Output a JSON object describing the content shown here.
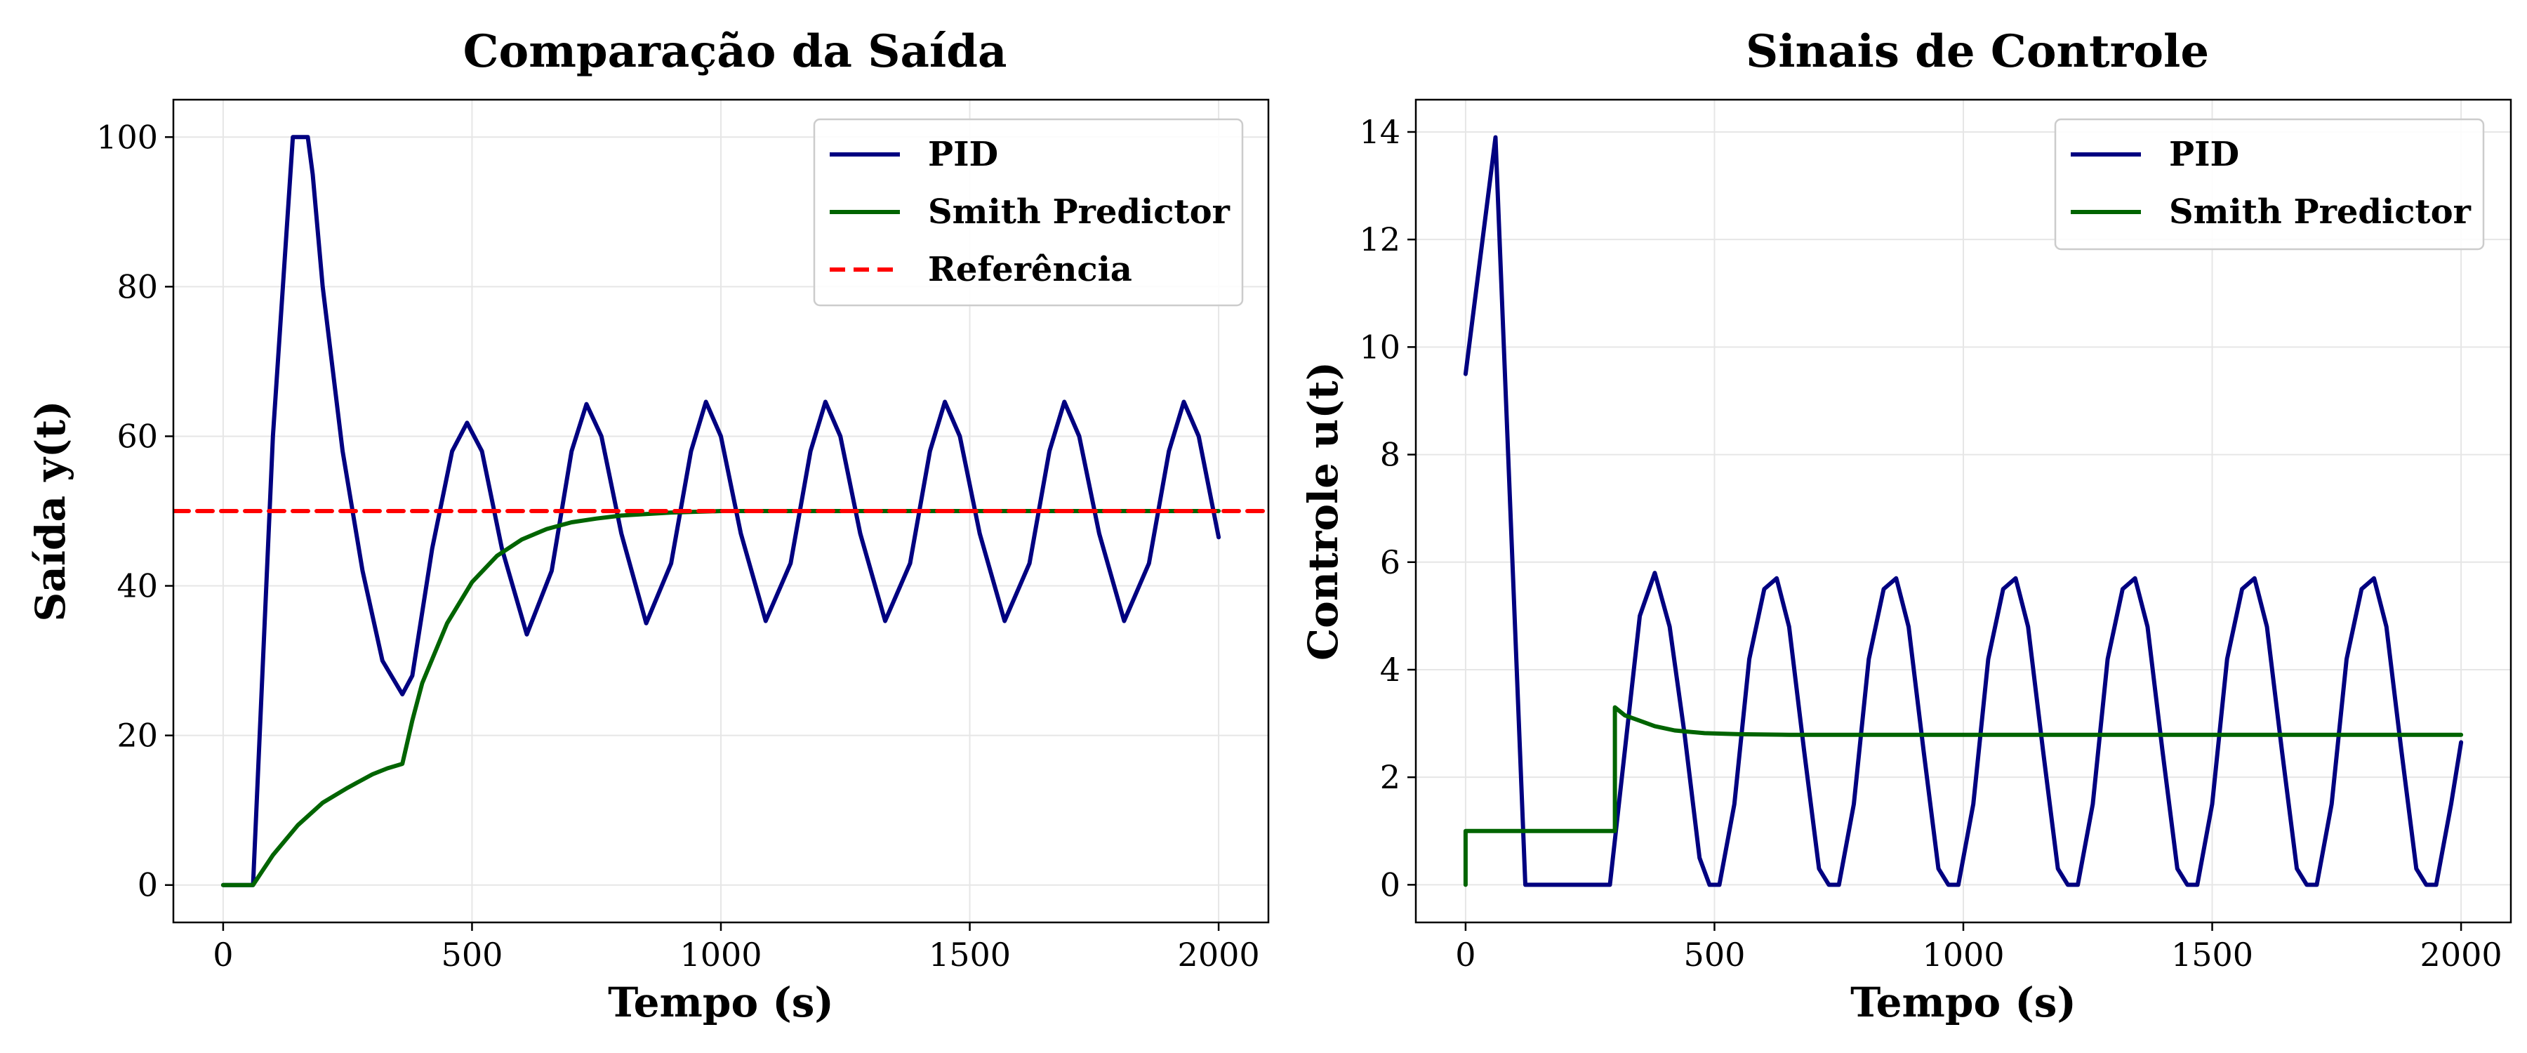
{
  "chart_data": [
    {
      "type": "line",
      "title": "Comparação da Saída",
      "xlabel": "Tempo (s)",
      "ylabel": "Saída y(t)",
      "xlim": [
        -100,
        2100
      ],
      "ylim": [
        -5,
        105
      ],
      "xticks": [
        0,
        500,
        1000,
        1500,
        2000
      ],
      "yticks": [
        0,
        20,
        40,
        60,
        80,
        100
      ],
      "grid": true,
      "legend_position": "top-right",
      "series": [
        {
          "name": "PID",
          "color": "#000080",
          "dash": "solid",
          "x": [
            0,
            60,
            100,
            140,
            170,
            180,
            200,
            240,
            280,
            320,
            360,
            380,
            420,
            460,
            490,
            520,
            560,
            610,
            660,
            700,
            730,
            760,
            800,
            850,
            900,
            940,
            970,
            1000,
            1040,
            1090,
            1140,
            1180,
            1210,
            1240,
            1280,
            1330,
            1380,
            1420,
            1450,
            1480,
            1520,
            1570,
            1620,
            1660,
            1690,
            1720,
            1760,
            1810,
            1860,
            1900,
            1930,
            1960,
            2000
          ],
          "values": [
            0,
            0,
            60,
            100,
            100,
            95,
            80,
            58,
            42,
            30,
            25.5,
            28,
            45,
            58,
            61.8,
            58,
            45,
            33.5,
            42,
            58,
            64.3,
            60,
            47,
            35,
            43,
            58,
            64.6,
            60,
            47,
            35.3,
            43,
            58,
            64.6,
            60,
            47,
            35.3,
            43,
            58,
            64.6,
            60,
            47,
            35.3,
            43,
            58,
            64.6,
            60,
            47,
            35.3,
            43,
            58,
            64.6,
            60,
            46.5
          ]
        },
        {
          "name": "Smith Predictor",
          "color": "#006400",
          "dash": "solid",
          "x": [
            0,
            60,
            80,
            100,
            150,
            200,
            250,
            300,
            330,
            360,
            380,
            400,
            450,
            500,
            550,
            600,
            650,
            700,
            750,
            800,
            900,
            1000,
            1200,
            1500,
            2000
          ],
          "values": [
            0,
            0,
            2,
            4,
            8,
            11,
            13,
            14.8,
            15.6,
            16.2,
            22,
            27,
            35,
            40.5,
            44,
            46.2,
            47.6,
            48.5,
            49,
            49.4,
            49.8,
            50,
            50,
            50,
            50
          ]
        },
        {
          "name": "Referência",
          "color": "#ff0000",
          "dash": "dashed",
          "x": [
            -100,
            2100
          ],
          "values": [
            50,
            50
          ]
        }
      ]
    },
    {
      "type": "line",
      "title": "Sinais de Controle",
      "xlabel": "Tempo (s)",
      "ylabel": "Controle u(t)",
      "xlim": [
        -100,
        2100
      ],
      "ylim": [
        -0.7,
        14.6
      ],
      "xticks": [
        0,
        500,
        1000,
        1500,
        2000
      ],
      "yticks": [
        0,
        2,
        4,
        6,
        8,
        10,
        12,
        14
      ],
      "grid": true,
      "legend_position": "top-right",
      "series": [
        {
          "name": "PID",
          "color": "#000080",
          "dash": "solid",
          "x": [
            0,
            60,
            120,
            290,
            320,
            350,
            380,
            410,
            440,
            470,
            490,
            510,
            540,
            570,
            600,
            625,
            650,
            680,
            710,
            730,
            750,
            780,
            810,
            840,
            865,
            890,
            920,
            950,
            970,
            990,
            1020,
            1050,
            1080,
            1105,
            1130,
            1160,
            1190,
            1210,
            1230,
            1260,
            1290,
            1320,
            1345,
            1370,
            1400,
            1430,
            1450,
            1470,
            1500,
            1530,
            1560,
            1585,
            1610,
            1640,
            1670,
            1690,
            1710,
            1740,
            1770,
            1800,
            1825,
            1850,
            1880,
            1910,
            1930,
            1950,
            1980,
            2000
          ],
          "values": [
            9.5,
            13.9,
            0,
            0,
            2.5,
            5,
            5.8,
            4.8,
            2.8,
            0.5,
            0,
            0,
            1.5,
            4.2,
            5.5,
            5.7,
            4.8,
            2.5,
            0.3,
            0,
            0,
            1.5,
            4.2,
            5.5,
            5.7,
            4.8,
            2.5,
            0.3,
            0,
            0,
            1.5,
            4.2,
            5.5,
            5.7,
            4.8,
            2.5,
            0.3,
            0,
            0,
            1.5,
            4.2,
            5.5,
            5.7,
            4.8,
            2.5,
            0.3,
            0,
            0,
            1.5,
            4.2,
            5.5,
            5.7,
            4.8,
            2.5,
            0.3,
            0,
            0,
            1.5,
            4.2,
            5.5,
            5.7,
            4.8,
            2.5,
            0.3,
            0,
            0,
            1.5,
            2.65
          ]
        },
        {
          "name": "Smith Predictor",
          "color": "#006400",
          "dash": "solid",
          "x": [
            0,
            0,
            300,
            300,
            320,
            350,
            380,
            420,
            480,
            550,
            650,
            800,
            1000,
            1500,
            2000
          ],
          "values": [
            0,
            1,
            1,
            3.3,
            3.15,
            3.05,
            2.95,
            2.87,
            2.82,
            2.8,
            2.79,
            2.79,
            2.79,
            2.79,
            2.79
          ]
        }
      ]
    }
  ]
}
